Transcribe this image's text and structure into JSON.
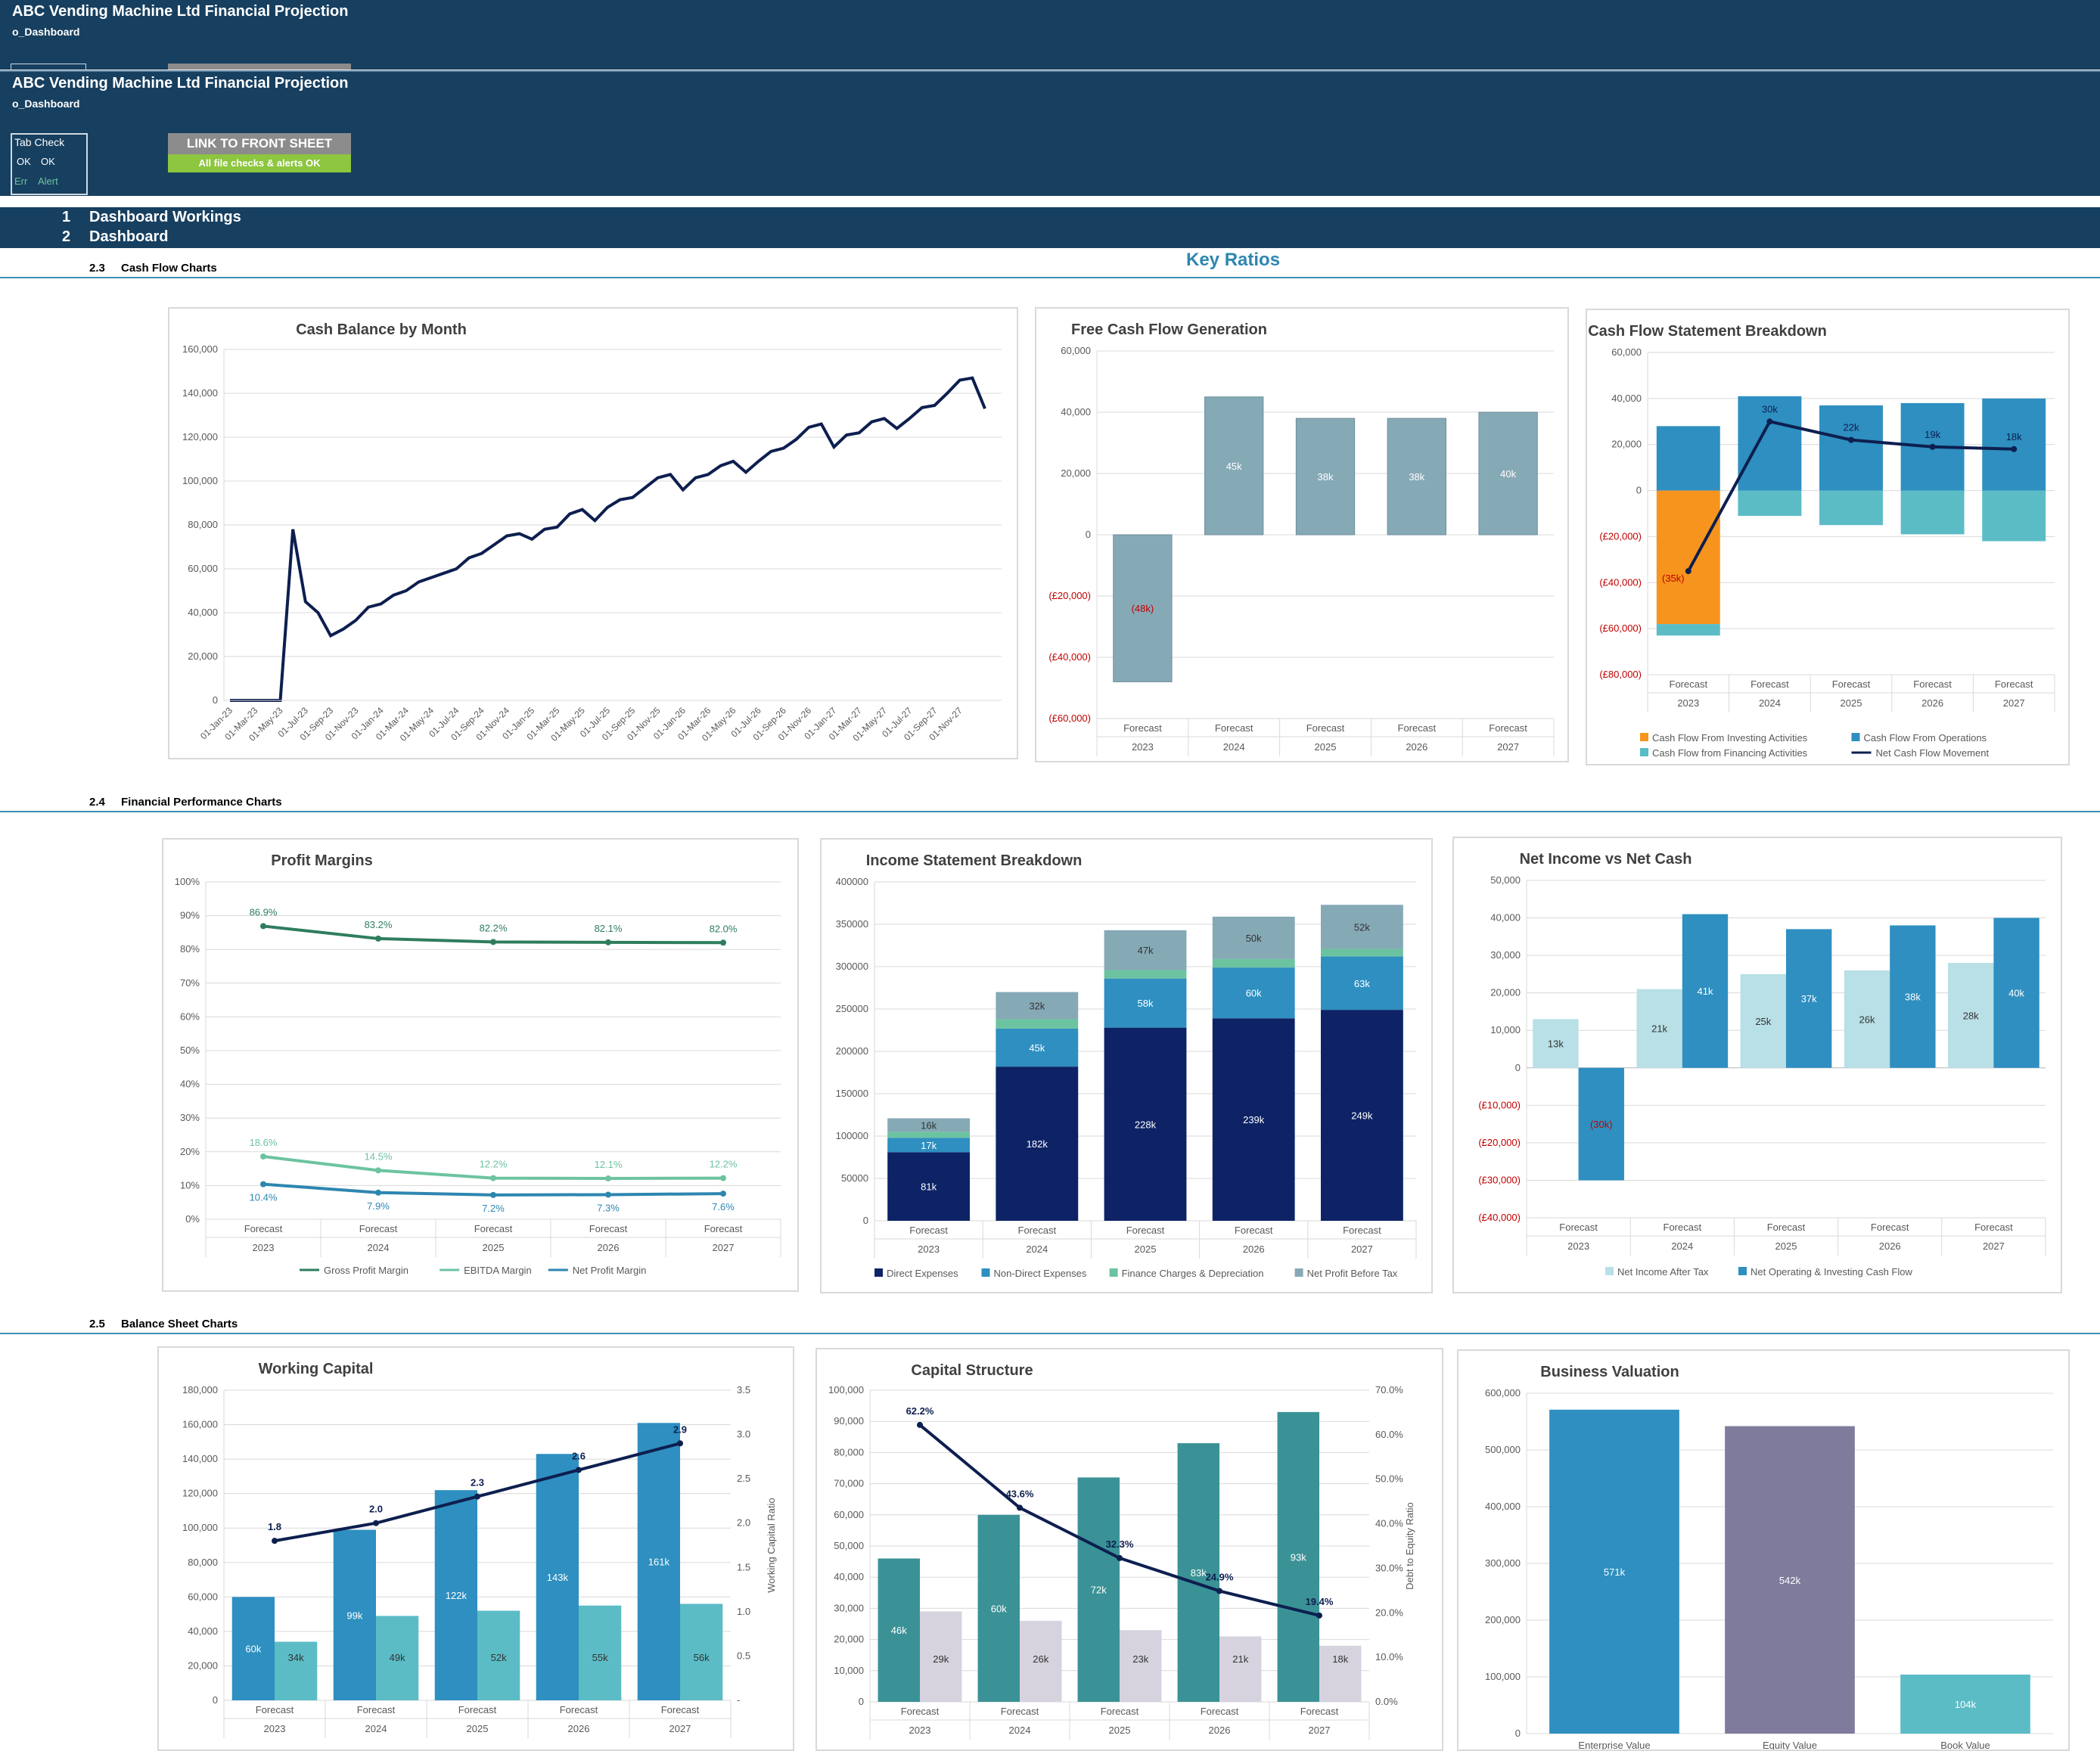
{
  "header": {
    "title": "ABC Vending Machine Ltd Financial Projection",
    "sheet": "o_Dashboard",
    "tab_check": {
      "label": "Tab Check",
      "ok1": "OK",
      "ok2": "OK",
      "err": "Err",
      "alert": "Alert"
    },
    "front_sheet_button": "LINK TO FRONT SHEET",
    "checks_status": "All file checks & alerts OK"
  },
  "nav": {
    "items": [
      {
        "num": "1",
        "label": "Dashboard Workings"
      },
      {
        "num": "2",
        "label": "Dashboard"
      }
    ]
  },
  "sections": [
    {
      "num": "2.3",
      "label": "Cash Flow Charts"
    },
    {
      "num": "2.4",
      "label": "Financial Performance Charts"
    },
    {
      "num": "2.5",
      "label": "Balance Sheet Charts"
    }
  ],
  "key_ratios": "Key Ratios",
  "colors": {
    "navy": "#173f5f",
    "accent": "#2e86b0",
    "dark_line": "#0d1f4f"
  },
  "chart_data": [
    {
      "id": "cash_balance",
      "type": "line",
      "title": "Cash Balance by Month",
      "ylim": [
        0,
        160000
      ],
      "yticks": [
        "0",
        "20,000",
        "40,000",
        "60,000",
        "80,000",
        "100,000",
        "120,000",
        "140,000",
        "160,000"
      ],
      "x_labels": [
        "01-Jan-23",
        "01-Mar-23",
        "01-May-23",
        "01-Jul-23",
        "01-Sep-23",
        "01-Nov-23",
        "01-Jan-24",
        "01-Mar-24",
        "01-May-24",
        "01-Jul-24",
        "01-Sep-24",
        "01-Nov-24",
        "01-Jan-25",
        "01-Mar-25",
        "01-May-25",
        "01-Jul-25",
        "01-Sep-25",
        "01-Nov-25",
        "01-Jan-26",
        "01-Mar-26",
        "01-May-26",
        "01-Jul-26",
        "01-Sep-26",
        "01-Nov-26",
        "01-Jan-27",
        "01-Mar-27",
        "01-May-27",
        "01-Jul-27",
        "01-Sep-27",
        "01-Nov-27"
      ],
      "values": [
        0,
        0,
        0,
        0,
        0,
        78000,
        45000,
        40000,
        29500,
        32500,
        36500,
        42500,
        44000,
        48000,
        50000,
        54000,
        56000,
        58000,
        60000,
        65000,
        67000,
        71000,
        75000,
        76000,
        73500,
        78000,
        79000,
        85000,
        87000,
        82000,
        88000,
        91500,
        92500,
        97000,
        101500,
        103000,
        96000,
        101500,
        103000,
        107000,
        109000,
        104000,
        109000,
        113500,
        115000,
        119000,
        124500,
        126000,
        115500,
        121000,
        122000,
        127000,
        128500,
        124000,
        128500,
        133500,
        134500,
        140000,
        146000,
        147000,
        133000
      ]
    },
    {
      "id": "free_cash_flow",
      "type": "bar",
      "title": "Free Cash Flow Generation",
      "ylim": [
        -60000,
        60000
      ],
      "yticks": [
        "(£60,000)",
        "(£40,000)",
        "(£20,000)",
        "0",
        "20,000",
        "40,000",
        "60,000"
      ],
      "categories": [
        "Forecast",
        "Forecast",
        "Forecast",
        "Forecast",
        "Forecast"
      ],
      "years": [
        "2023",
        "2024",
        "2025",
        "2026",
        "2027"
      ],
      "values": [
        -48000,
        45000,
        38000,
        38000,
        40000
      ],
      "labels": [
        "(48k)",
        "45k",
        "38k",
        "38k",
        "40k"
      ]
    },
    {
      "id": "cash_flow_breakdown",
      "type": "bar",
      "title": "Cash Flow Statement Breakdown",
      "ylim": [
        -80000,
        60000
      ],
      "yticks": [
        "(£80,000)",
        "(£60,000)",
        "(£40,000)",
        "(£20,000)",
        "0",
        "20,000",
        "40,000",
        "60,000"
      ],
      "categories": [
        "Forecast",
        "Forecast",
        "Forecast",
        "Forecast",
        "Forecast"
      ],
      "years": [
        "2023",
        "2024",
        "2025",
        "2026",
        "2027"
      ],
      "series": [
        {
          "name": "Cash Flow From Investing Activities",
          "color": "#f7941d",
          "values": [
            -58000,
            0,
            0,
            0,
            0
          ]
        },
        {
          "name": "Cash Flow From Operations",
          "color": "#2e8fc0",
          "values": [
            28000,
            41000,
            37000,
            38000,
            40000
          ]
        },
        {
          "name": "Cash Flow from Financing Activities",
          "color": "#5bbcc6",
          "values": [
            -5000,
            -11000,
            -15000,
            -19000,
            -22000
          ]
        },
        {
          "name": "Net Cash Flow Movement",
          "color": "#0d1f4f",
          "values": [
            -35000,
            30000,
            22000,
            19000,
            18000
          ]
        }
      ],
      "line_labels": [
        "(35k)",
        "30k",
        "22k",
        "19k",
        "18k"
      ]
    },
    {
      "id": "profit_margins",
      "type": "line",
      "title": "Profit Margins",
      "ylim": [
        0,
        100
      ],
      "yticks": [
        "0%",
        "10%",
        "20%",
        "30%",
        "40%",
        "50%",
        "60%",
        "70%",
        "80%",
        "90%",
        "100%"
      ],
      "categories": [
        "Forecast",
        "Forecast",
        "Forecast",
        "Forecast",
        "Forecast"
      ],
      "years": [
        "2023",
        "2024",
        "2025",
        "2026",
        "2027"
      ],
      "series": [
        {
          "name": "Gross Profit Margin",
          "color": "#2e7d5e",
          "values": [
            86.9,
            83.2,
            82.2,
            82.1,
            82.0
          ],
          "labels": [
            "86.9%",
            "83.2%",
            "82.2%",
            "82.1%",
            "82.0%"
          ]
        },
        {
          "name": "EBITDA Margin",
          "color": "#6cc3a0",
          "values": [
            18.6,
            14.5,
            12.2,
            12.1,
            12.2
          ],
          "labels": [
            "18.6%",
            "14.5%",
            "12.2%",
            "12.1%",
            "12.2%"
          ]
        },
        {
          "name": "Net Profit Margin",
          "color": "#2e86b0",
          "values": [
            10.4,
            7.9,
            7.2,
            7.3,
            7.6
          ],
          "labels": [
            "10.4%",
            "7.9%",
            "7.2%",
            "7.3%",
            "7.6%"
          ]
        }
      ]
    },
    {
      "id": "income_statement",
      "type": "bar",
      "title": "Income Statement Breakdown",
      "ylim": [
        0,
        400000
      ],
      "yticks": [
        "0",
        "50000",
        "100000",
        "150000",
        "200000",
        "250000",
        "300000",
        "350000",
        "400000"
      ],
      "categories": [
        "Forecast",
        "Forecast",
        "Forecast",
        "Forecast",
        "Forecast"
      ],
      "years": [
        "2023",
        "2024",
        "2025",
        "2026",
        "2027"
      ],
      "series": [
        {
          "name": "Direct Expenses",
          "color": "#0d2366",
          "values": [
            81000,
            182000,
            228000,
            239000,
            249000
          ],
          "labels": [
            "81k",
            "182k",
            "228k",
            "239k",
            "249k"
          ]
        },
        {
          "name": "Non-Direct Expenses",
          "color": "#2e8fc0",
          "values": [
            17000,
            45000,
            58000,
            60000,
            63000
          ],
          "labels": [
            "17k",
            "45k",
            "58k",
            "60k",
            "63k"
          ]
        },
        {
          "name": "Finance Charges & Depreciation",
          "color": "#6cc3a0",
          "values": [
            7000,
            11000,
            10000,
            10000,
            9000
          ],
          "labels": [
            "",
            "",
            "",
            "",
            ""
          ]
        },
        {
          "name": "Net Profit Before Tax",
          "color": "#86a9b6",
          "values": [
            16000,
            32000,
            47000,
            50000,
            52000
          ],
          "labels": [
            "16k",
            "32k",
            "47k",
            "50k",
            "52k"
          ]
        }
      ]
    },
    {
      "id": "net_income_vs_cash",
      "type": "bar",
      "title": "Net Income vs Net Cash",
      "ylim": [
        -40000,
        50000
      ],
      "yticks": [
        "(£40,000)",
        "(£30,000)",
        "(£20,000)",
        "(£10,000)",
        "0",
        "10,000",
        "20,000",
        "30,000",
        "40,000",
        "50,000"
      ],
      "categories": [
        "Forecast",
        "Forecast",
        "Forecast",
        "Forecast",
        "Forecast"
      ],
      "years": [
        "2023",
        "2024",
        "2025",
        "2026",
        "2027"
      ],
      "series": [
        {
          "name": "Net Income After Tax",
          "color": "#b8e0e6",
          "values": [
            13000,
            21000,
            25000,
            26000,
            28000
          ],
          "labels": [
            "13k",
            "21k",
            "25k",
            "26k",
            "28k"
          ]
        },
        {
          "name": "Net Operating & Investing Cash Flow",
          "color": "#2e8fc0",
          "values": [
            -30000,
            41000,
            37000,
            38000,
            40000
          ],
          "labels": [
            "(30k)",
            "41k",
            "37k",
            "38k",
            "40k"
          ]
        }
      ]
    },
    {
      "id": "working_capital",
      "type": "bar",
      "title": "Working Capital",
      "ylim": [
        0,
        180000
      ],
      "yticks": [
        "0",
        "20,000",
        "40,000",
        "60,000",
        "80,000",
        "100,000",
        "120,000",
        "140,000",
        "160,000",
        "180,000"
      ],
      "y2lim": [
        0,
        3.5
      ],
      "y2ticks": [
        "-",
        "0.5",
        "1.0",
        "1.5",
        "2.0",
        "2.5",
        "3.0",
        "3.5"
      ],
      "y2label": "Working Capital Ratio",
      "categories": [
        "Forecast",
        "Forecast",
        "Forecast",
        "Forecast",
        "Forecast"
      ],
      "years": [
        "2023",
        "2024",
        "2025",
        "2026",
        "2027"
      ],
      "series": [
        {
          "color": "#2e8fc0",
          "values": [
            60000,
            99000,
            122000,
            143000,
            161000
          ],
          "labels": [
            "60k",
            "99k",
            "122k",
            "143k",
            "161k"
          ]
        },
        {
          "color": "#5bbcc6",
          "values": [
            34000,
            49000,
            52000,
            55000,
            56000
          ],
          "labels": [
            "34k",
            "49k",
            "52k",
            "55k",
            "56k"
          ]
        },
        {
          "color": "#0d1f4f",
          "values": [
            1.8,
            2.0,
            2.3,
            2.6,
            2.9
          ],
          "labels": [
            "1.8",
            "2.0",
            "2.3",
            "2.6",
            "2.9"
          ]
        }
      ]
    },
    {
      "id": "capital_structure",
      "type": "bar",
      "title": "Capital Structure",
      "ylim": [
        0,
        100000
      ],
      "yticks": [
        "0",
        "10,000",
        "20,000",
        "30,000",
        "40,000",
        "50,000",
        "60,000",
        "70,000",
        "80,000",
        "90,000",
        "100,000"
      ],
      "y2lim": [
        0,
        70
      ],
      "y2ticks": [
        "0.0%",
        "10.0%",
        "20.0%",
        "30.0%",
        "40.0%",
        "50.0%",
        "60.0%",
        "70.0%"
      ],
      "y2label": "Debt to Equity Ratio",
      "categories": [
        "Forecast",
        "Forecast",
        "Forecast",
        "Forecast",
        "Forecast"
      ],
      "years": [
        "2023",
        "2024",
        "2025",
        "2026",
        "2027"
      ],
      "series": [
        {
          "color": "#3a9296",
          "values": [
            46000,
            60000,
            72000,
            83000,
            93000
          ],
          "labels": [
            "46k",
            "60k",
            "72k",
            "83k",
            "93k"
          ]
        },
        {
          "color": "#d6d3df",
          "values": [
            29000,
            26000,
            23000,
            21000,
            18000
          ],
          "labels": [
            "29k",
            "26k",
            "23k",
            "21k",
            "18k"
          ]
        },
        {
          "color": "#0d1f4f",
          "values": [
            62.2,
            43.6,
            32.3,
            24.9,
            19.4
          ],
          "labels": [
            "62.2%",
            "43.6%",
            "32.3%",
            "24.9%",
            "19.4%"
          ]
        }
      ]
    },
    {
      "id": "business_valuation",
      "type": "bar",
      "title": "Business Valuation",
      "ylim": [
        0,
        600000
      ],
      "yticks": [
        "0",
        "100,000",
        "200,000",
        "300,000",
        "400,000",
        "500,000",
        "600,000"
      ],
      "categories": [
        "Enterprise Value",
        "Equity Value",
        "Book Value"
      ],
      "values": [
        571000,
        542000,
        104000
      ],
      "labels": [
        "571k",
        "542k",
        "104k"
      ],
      "colors": [
        "#2e8fc0",
        "#7f7b9c",
        "#5bbcc6"
      ]
    }
  ]
}
